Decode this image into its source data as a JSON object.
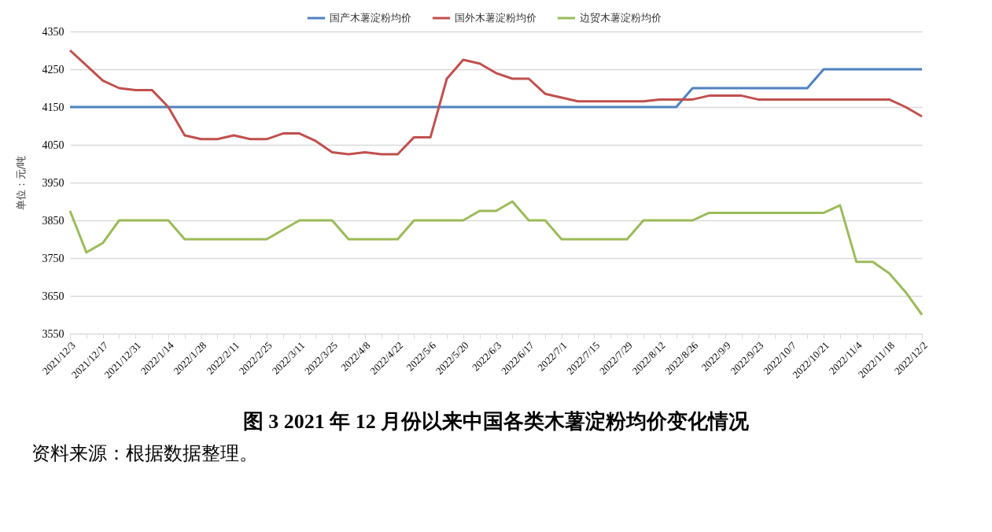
{
  "chart_data": {
    "type": "line",
    "title": "图 3   2021 年 12 月份以来中国各类木薯淀粉均价变化情况",
    "ylabel": "单位：元/吨",
    "annotations": [
      "资料来源：根据数据整理。"
    ],
    "categories": [
      "2021/12/3",
      null,
      "2021/12/17",
      null,
      "2021/12/31",
      null,
      "2022/1/14",
      null,
      "2022/1/28",
      null,
      "2022/2/11",
      null,
      "2022/2/25",
      null,
      "2022/3/11",
      null,
      "2022/3/25",
      null,
      "2022/4/8",
      null,
      "2022/4/22",
      null,
      "2022/5/6",
      null,
      "2022/5/20",
      null,
      "2022/6/3",
      null,
      "2022/6/17",
      null,
      "2022/7/1",
      null,
      "2022/7/15",
      null,
      "2022/7/29",
      null,
      "2022/8/12",
      null,
      "2022/8/26",
      null,
      "2022/9/9",
      null,
      "2022/9/23",
      null,
      "2022/10/7",
      null,
      "2022/10/21",
      null,
      "2022/11/4",
      null,
      "2022/11/18",
      null,
      "2022/12/2"
    ],
    "series": [
      {
        "name": "国产木薯淀粉均价",
        "color": "#4f81bd",
        "values": [
          4150,
          4150,
          4150,
          4150,
          4150,
          4150,
          4150,
          4150,
          4150,
          4150,
          4150,
          4150,
          4150,
          4150,
          4150,
          4150,
          4150,
          4150,
          4150,
          4150,
          4150,
          4150,
          4150,
          4150,
          4150,
          4150,
          4150,
          4150,
          4150,
          4150,
          4150,
          4150,
          4150,
          4150,
          4150,
          4150,
          4150,
          4150,
          4200,
          4200,
          4200,
          4200,
          4200,
          4200,
          4200,
          4200,
          4250,
          4250,
          4250,
          4250,
          4250,
          4250,
          4250
        ]
      },
      {
        "name": "国外木薯淀粉均价",
        "color": "#c0504d",
        "values": [
          4300,
          4260,
          4220,
          4200,
          4195,
          4195,
          4150,
          4075,
          4065,
          4065,
          4075,
          4065,
          4065,
          4080,
          4080,
          4060,
          4030,
          4025,
          4030,
          4025,
          4025,
          4070,
          4070,
          4225,
          4275,
          4265,
          4240,
          4225,
          4225,
          4185,
          4175,
          4165,
          4165,
          4165,
          4165,
          4165,
          4170,
          4170,
          4170,
          4180,
          4180,
          4180,
          4170,
          4170,
          4170,
          4170,
          4170,
          4170,
          4170,
          4170,
          4170,
          4150,
          4125
        ]
      },
      {
        "name": "边贸木薯淀粉均价",
        "color": "#9bbb59",
        "values": [
          3875,
          3765,
          3790,
          3850,
          3850,
          3850,
          3850,
          3800,
          3800,
          3800,
          3800,
          3800,
          3800,
          3825,
          3850,
          3850,
          3850,
          3800,
          3800,
          3800,
          3800,
          3850,
          3850,
          3850,
          3850,
          3875,
          3875,
          3900,
          3850,
          3850,
          3800,
          3800,
          3800,
          3800,
          3800,
          3850,
          3850,
          3850,
          3850,
          3870,
          3870,
          3870,
          3870,
          3870,
          3870,
          3870,
          3870,
          3890,
          3740,
          3740,
          3710,
          3660,
          3600
        ]
      }
    ],
    "ylim": [
      3550,
      4350
    ],
    "yticks": [
      3550,
      3650,
      3750,
      3850,
      3950,
      4050,
      4150,
      4250,
      4350
    ],
    "grid": "y",
    "legend": "top",
    "line_style": "solid",
    "marker": "none"
  }
}
